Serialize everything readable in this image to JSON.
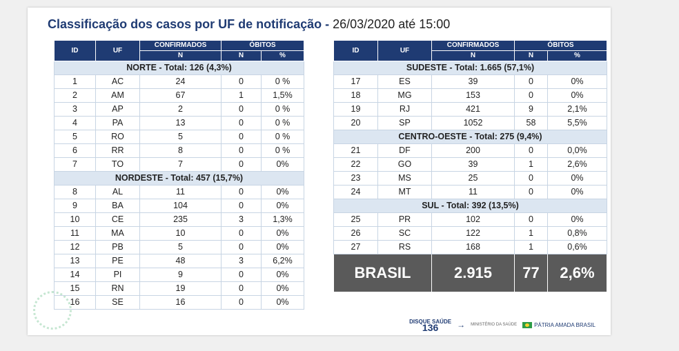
{
  "title": {
    "main": "Classificação dos casos por UF de notificação -",
    "date": "26/03/2020 até 15:00"
  },
  "headers": {
    "id": "ID",
    "uf": "UF",
    "confirmados": "CONFIRMADOS",
    "obitos": "ÓBITOS",
    "n": "N",
    "pct": "%"
  },
  "left": {
    "regions": [
      {
        "label": "NORTE - Total:  126 (4,3%)",
        "rows": [
          [
            "1",
            "AC",
            "24",
            "0",
            "0 %"
          ],
          [
            "2",
            "AM",
            "67",
            "1",
            "1,5%"
          ],
          [
            "3",
            "AP",
            "2",
            "0",
            "0 %"
          ],
          [
            "4",
            "PA",
            "13",
            "0",
            "0 %"
          ],
          [
            "5",
            "RO",
            "5",
            "0",
            "0 %"
          ],
          [
            "6",
            "RR",
            "8",
            "0",
            "0 %"
          ],
          [
            "7",
            "TO",
            "7",
            "0",
            "0%"
          ]
        ]
      },
      {
        "label": "NORDESTE -  Total:  457  (15,7%)",
        "rows": [
          [
            "8",
            "AL",
            "11",
            "0",
            "0%"
          ],
          [
            "9",
            "BA",
            "104",
            "0",
            "0%"
          ],
          [
            "10",
            "CE",
            "235",
            "3",
            "1,3%"
          ],
          [
            "11",
            "MA",
            "10",
            "0",
            "0%"
          ],
          [
            "12",
            "PB",
            "5",
            "0",
            "0%"
          ],
          [
            "13",
            "PE",
            "48",
            "3",
            "6,2%"
          ],
          [
            "14",
            "PI",
            "9",
            "0",
            "0%"
          ],
          [
            "15",
            "RN",
            "19",
            "0",
            "0%"
          ],
          [
            "16",
            "SE",
            "16",
            "0",
            "0%"
          ]
        ]
      }
    ]
  },
  "right": {
    "regions": [
      {
        "label": "SUDESTE - Total: 1.665 (57,1%)",
        "rows": [
          [
            "17",
            "ES",
            "39",
            "0",
            "0%"
          ],
          [
            "18",
            "MG",
            "153",
            "0",
            "0%"
          ],
          [
            "19",
            "RJ",
            "421",
            "9",
            "2,1%"
          ],
          [
            "20",
            "SP",
            "1052",
            "58",
            "5,5%"
          ]
        ]
      },
      {
        "label": "CENTRO-OESTE - Total:  275 (9,4%)",
        "rows": [
          [
            "21",
            "DF",
            "200",
            "0",
            "0,0%"
          ],
          [
            "22",
            "GO",
            "39",
            "1",
            "2,6%"
          ],
          [
            "23",
            "MS",
            "25",
            "0",
            "0%"
          ],
          [
            "24",
            "MT",
            "11",
            "0",
            "0%"
          ]
        ]
      },
      {
        "label": "SUL - Total: 392 (13,5%)",
        "rows": [
          [
            "25",
            "PR",
            "102",
            "0",
            "0%"
          ],
          [
            "26",
            "SC",
            "122",
            "1",
            "0,8%"
          ],
          [
            "27",
            "RS",
            "168",
            "1",
            "0,6%"
          ]
        ]
      }
    ],
    "brasil": {
      "label": "BRASIL",
      "confirmados": "2.915",
      "obitos": "77",
      "pct": "2,6%"
    }
  },
  "logos": {
    "disque": "DISQUE SAÚDE",
    "number": "136",
    "ms": "MINISTÉRIO DA SAÚDE",
    "gov": "PÁTRIA AMADA BRASIL"
  }
}
